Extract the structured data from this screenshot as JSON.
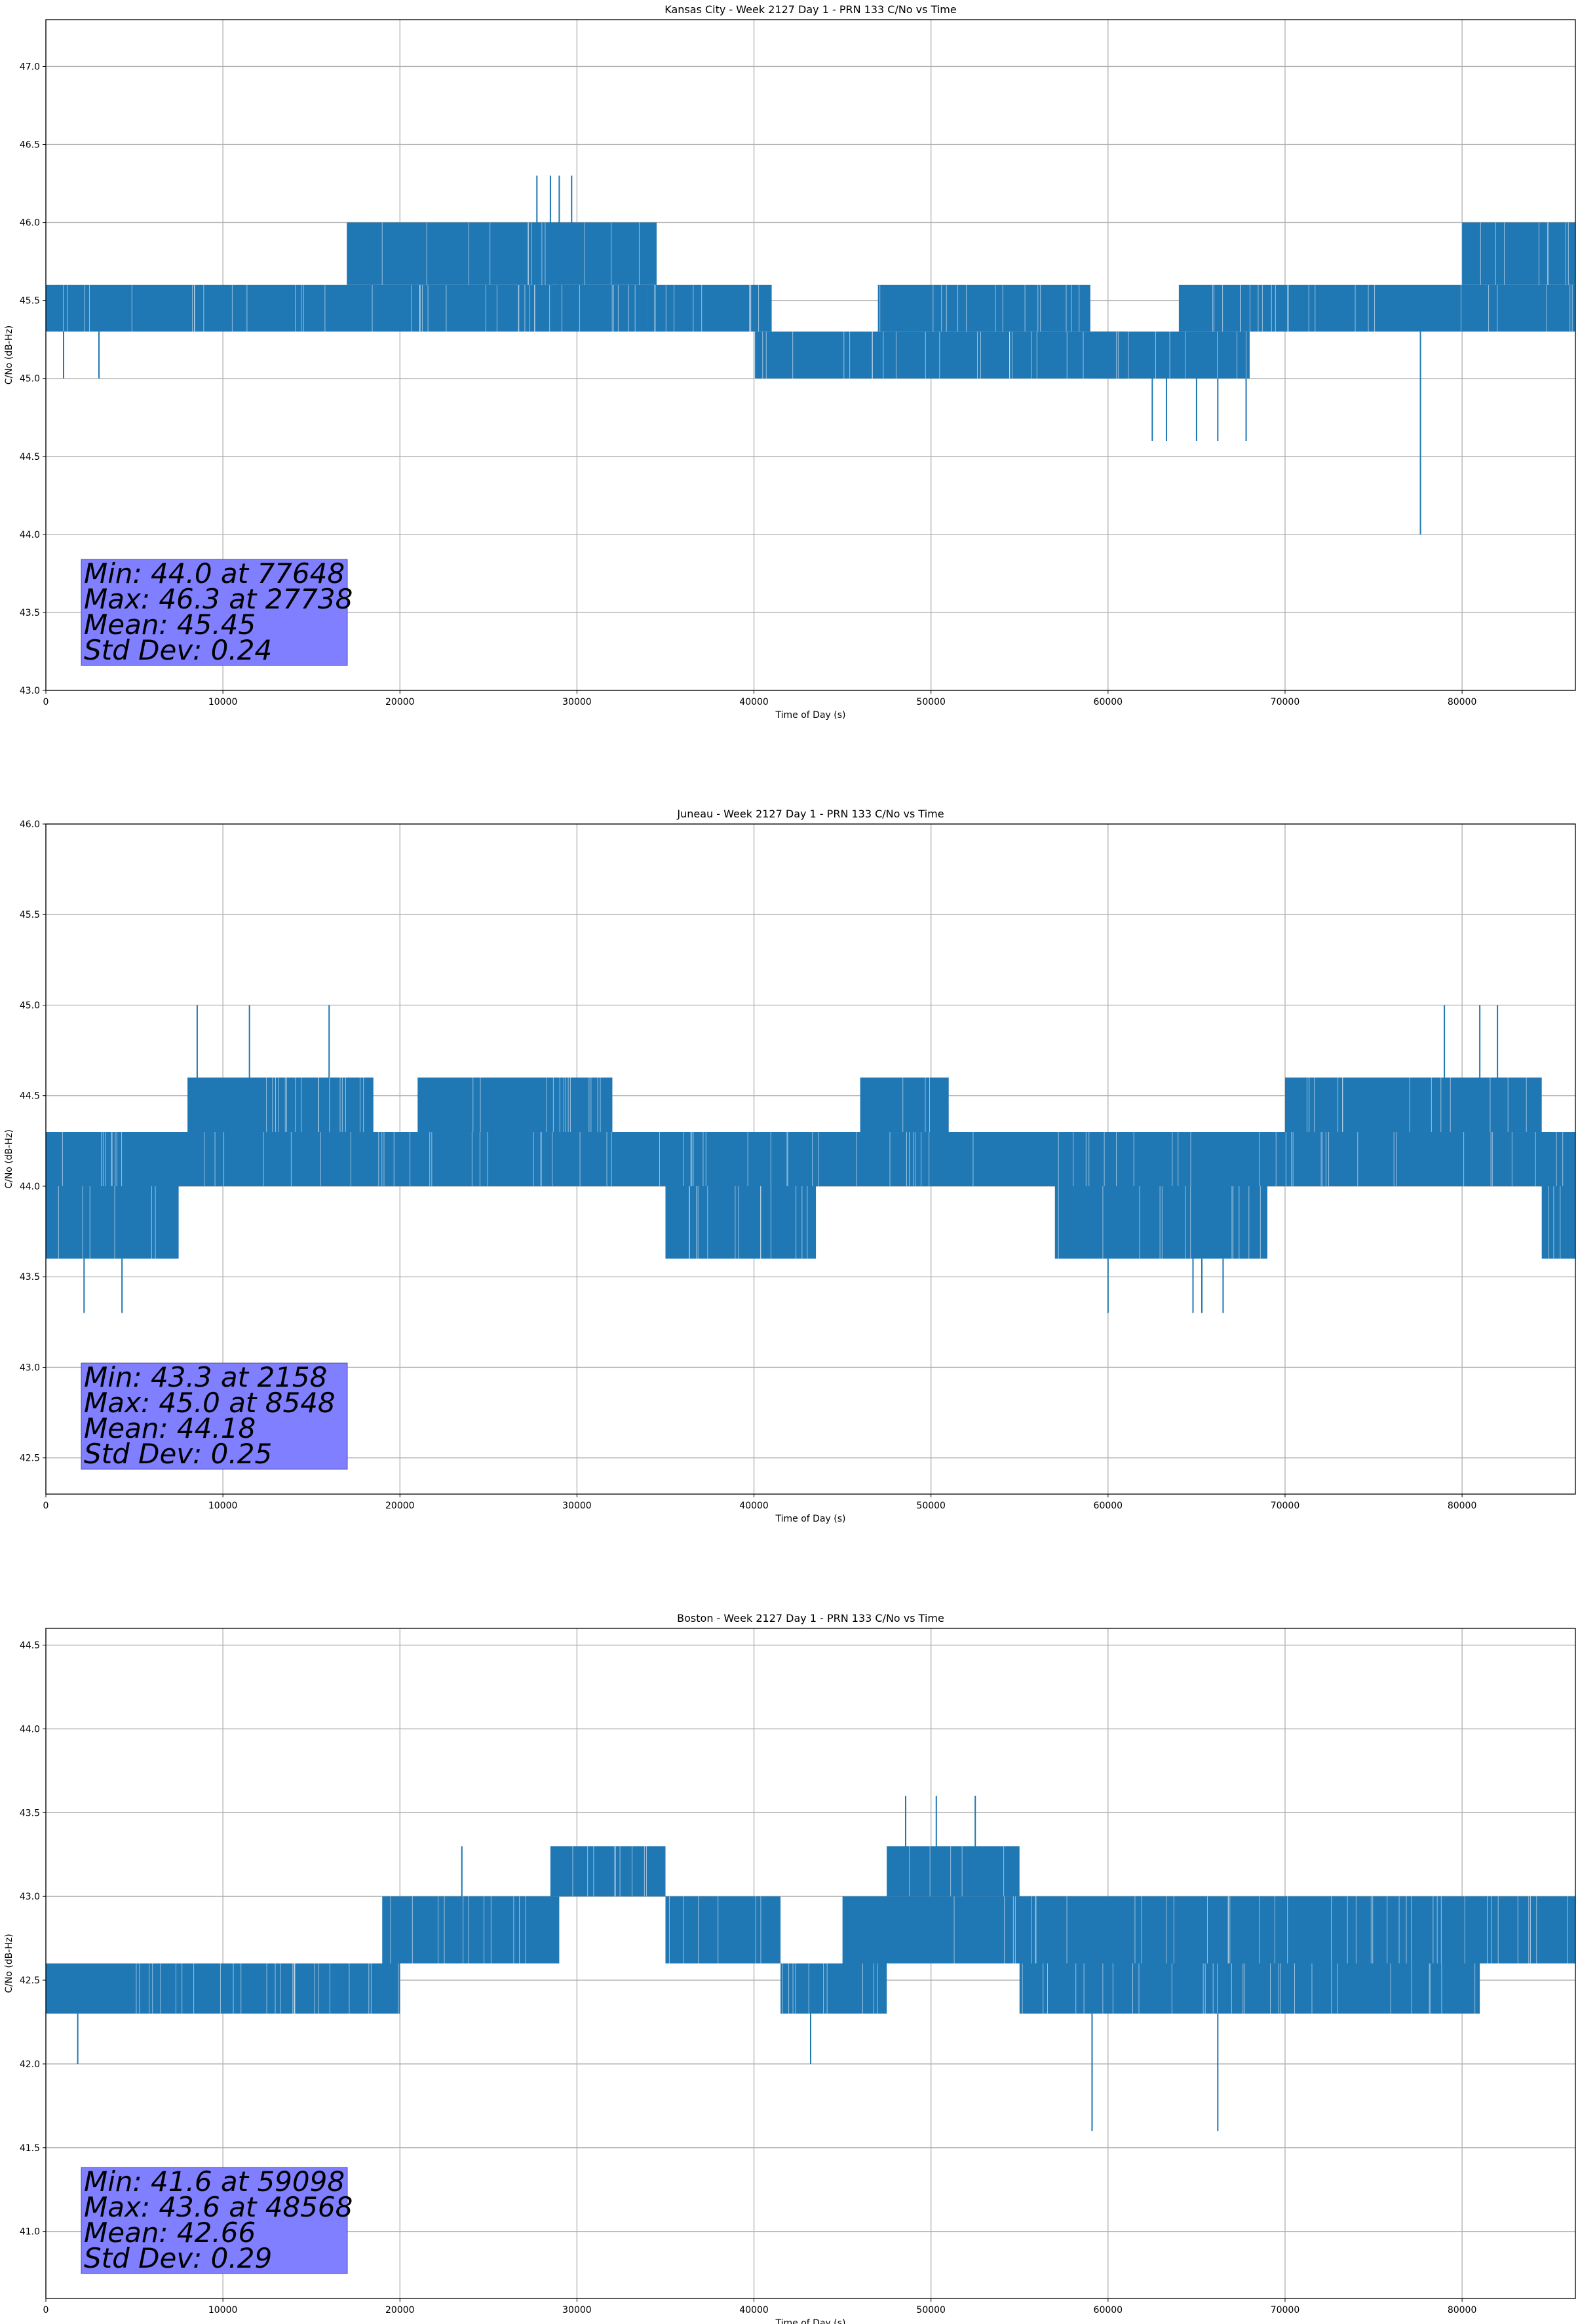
{
  "chart_data": [
    {
      "type": "line",
      "title": "Kansas City - Week 2127 Day 1 - PRN 133 C/No vs Time",
      "xlabel": "Time of Day (s)",
      "ylabel": "C/No (dB-Hz)",
      "xlim": [
        0,
        86400
      ],
      "ylim": [
        43.0,
        47.3
      ],
      "xticks": [
        0,
        10000,
        20000,
        30000,
        40000,
        50000,
        60000,
        70000,
        80000
      ],
      "yticks": [
        43.0,
        43.5,
        44.0,
        44.5,
        45.0,
        45.5,
        46.0,
        46.5,
        47.0
      ],
      "grid": true,
      "color": "#1f77b4",
      "stats": [
        "Min: 44.0 at 77648",
        "Max: 46.3 at 27738",
        "Mean: 45.45",
        "Std Dev: 0.24"
      ],
      "bands": [
        {
          "x": [
            0,
            34000
          ],
          "y": [
            45.3,
            45.6
          ]
        },
        {
          "x": [
            17000,
            34500
          ],
          "y": [
            45.6,
            46.0
          ]
        },
        {
          "x": [
            34000,
            41000
          ],
          "y": [
            45.3,
            45.6
          ]
        },
        {
          "x": [
            40000,
            61000
          ],
          "y": [
            45.0,
            45.3
          ]
        },
        {
          "x": [
            47000,
            59000
          ],
          "y": [
            45.3,
            45.6
          ]
        },
        {
          "x": [
            59000,
            68000
          ],
          "y": [
            45.0,
            45.3
          ]
        },
        {
          "x": [
            64000,
            86400
          ],
          "y": [
            45.3,
            45.6
          ]
        },
        {
          "x": [
            80000,
            86400
          ],
          "y": [
            45.6,
            46.0
          ]
        }
      ],
      "spikes": [
        {
          "x": 27738,
          "y": [
            45.6,
            46.3
          ]
        },
        {
          "x": 28500,
          "y": [
            45.6,
            46.3
          ]
        },
        {
          "x": 29000,
          "y": [
            45.6,
            46.3
          ]
        },
        {
          "x": 29700,
          "y": [
            45.6,
            46.3
          ]
        },
        {
          "x": 62500,
          "y": [
            45.0,
            44.6
          ]
        },
        {
          "x": 63300,
          "y": [
            45.0,
            44.6
          ]
        },
        {
          "x": 65000,
          "y": [
            45.0,
            44.6
          ]
        },
        {
          "x": 66200,
          "y": [
            45.0,
            44.6
          ]
        },
        {
          "x": 67800,
          "y": [
            45.0,
            44.6
          ]
        },
        {
          "x": 77648,
          "y": [
            45.3,
            44.0
          ]
        },
        {
          "x": 1000,
          "y": [
            45.3,
            45.0
          ]
        },
        {
          "x": 3000,
          "y": [
            45.3,
            45.0
          ]
        }
      ]
    },
    {
      "type": "line",
      "title": "Juneau - Week 2127 Day 1 - PRN 133 C/No vs Time",
      "xlabel": "Time of Day (s)",
      "ylabel": "C/No (dB-Hz)",
      "xlim": [
        0,
        86400
      ],
      "ylim": [
        42.3,
        46.0
      ],
      "xticks": [
        0,
        10000,
        20000,
        30000,
        40000,
        50000,
        60000,
        70000,
        80000
      ],
      "yticks": [
        42.5,
        43.0,
        43.5,
        44.0,
        44.5,
        45.0,
        45.5,
        46.0
      ],
      "grid": true,
      "color": "#1f77b4",
      "stats": [
        "Min: 43.3 at 2158",
        "Max: 45.0 at 8548",
        "Mean: 44.18",
        "Std Dev: 0.25"
      ],
      "bands": [
        {
          "x": [
            0,
            7500
          ],
          "y": [
            43.6,
            44.0
          ]
        },
        {
          "x": [
            0,
            86400
          ],
          "y": [
            44.0,
            44.3
          ]
        },
        {
          "x": [
            8000,
            18500
          ],
          "y": [
            44.3,
            44.6
          ]
        },
        {
          "x": [
            21000,
            32000
          ],
          "y": [
            44.3,
            44.6
          ]
        },
        {
          "x": [
            35000,
            43500
          ],
          "y": [
            43.6,
            44.0
          ]
        },
        {
          "x": [
            46000,
            51000
          ],
          "y": [
            44.3,
            44.6
          ]
        },
        {
          "x": [
            57000,
            69000
          ],
          "y": [
            43.6,
            44.0
          ]
        },
        {
          "x": [
            70000,
            84500
          ],
          "y": [
            44.3,
            44.6
          ]
        },
        {
          "x": [
            84500,
            86400
          ],
          "y": [
            43.6,
            44.0
          ]
        }
      ],
      "spikes": [
        {
          "x": 2158,
          "y": [
            43.6,
            43.3
          ]
        },
        {
          "x": 4300,
          "y": [
            43.6,
            43.3
          ]
        },
        {
          "x": 8548,
          "y": [
            44.6,
            45.0
          ]
        },
        {
          "x": 11500,
          "y": [
            44.6,
            45.0
          ]
        },
        {
          "x": 16000,
          "y": [
            44.6,
            45.0
          ]
        },
        {
          "x": 60000,
          "y": [
            43.6,
            43.3
          ]
        },
        {
          "x": 64800,
          "y": [
            43.6,
            43.3
          ]
        },
        {
          "x": 65300,
          "y": [
            43.6,
            43.3
          ]
        },
        {
          "x": 66500,
          "y": [
            43.6,
            43.3
          ]
        },
        {
          "x": 79000,
          "y": [
            44.6,
            45.0
          ]
        },
        {
          "x": 81000,
          "y": [
            44.6,
            45.0
          ]
        },
        {
          "x": 82000,
          "y": [
            44.6,
            45.0
          ]
        }
      ]
    },
    {
      "type": "line",
      "title": "Boston - Week 2127 Day 1 - PRN 133 C/No vs Time",
      "xlabel": "Time of Day (s)",
      "ylabel": "C/No (dB-Hz)",
      "xlim": [
        0,
        86400
      ],
      "ylim": [
        40.6,
        44.6
      ],
      "xticks": [
        0,
        10000,
        20000,
        30000,
        40000,
        50000,
        60000,
        70000,
        80000
      ],
      "yticks": [
        41.0,
        41.5,
        42.0,
        42.5,
        43.0,
        43.5,
        44.0,
        44.5
      ],
      "grid": true,
      "color": "#1f77b4",
      "stats": [
        "Min: 41.6 at 59098",
        "Max: 43.6 at 48568",
        "Mean: 42.66",
        "Std Dev: 0.29"
      ],
      "bands": [
        {
          "x": [
            0,
            20000
          ],
          "y": [
            42.3,
            42.6
          ]
        },
        {
          "x": [
            19000,
            29000
          ],
          "y": [
            42.6,
            43.0
          ]
        },
        {
          "x": [
            28500,
            35000
          ],
          "y": [
            43.0,
            43.3
          ]
        },
        {
          "x": [
            35000,
            41500
          ],
          "y": [
            42.6,
            43.0
          ]
        },
        {
          "x": [
            41500,
            47500
          ],
          "y": [
            42.3,
            42.6
          ]
        },
        {
          "x": [
            45000,
            86400
          ],
          "y": [
            42.6,
            43.0
          ]
        },
        {
          "x": [
            47500,
            55000
          ],
          "y": [
            43.0,
            43.3
          ]
        },
        {
          "x": [
            55000,
            81000
          ],
          "y": [
            42.3,
            42.6
          ]
        }
      ],
      "spikes": [
        {
          "x": 48568,
          "y": [
            43.3,
            43.6
          ]
        },
        {
          "x": 50300,
          "y": [
            43.3,
            43.6
          ]
        },
        {
          "x": 52500,
          "y": [
            43.3,
            43.6
          ]
        },
        {
          "x": 59098,
          "y": [
            42.3,
            41.6
          ]
        },
        {
          "x": 66200,
          "y": [
            42.3,
            41.6
          ]
        },
        {
          "x": 1800,
          "y": [
            42.3,
            42.0
          ]
        },
        {
          "x": 43200,
          "y": [
            42.3,
            42.0
          ]
        },
        {
          "x": 23500,
          "y": [
            43.0,
            43.3
          ]
        }
      ]
    }
  ]
}
